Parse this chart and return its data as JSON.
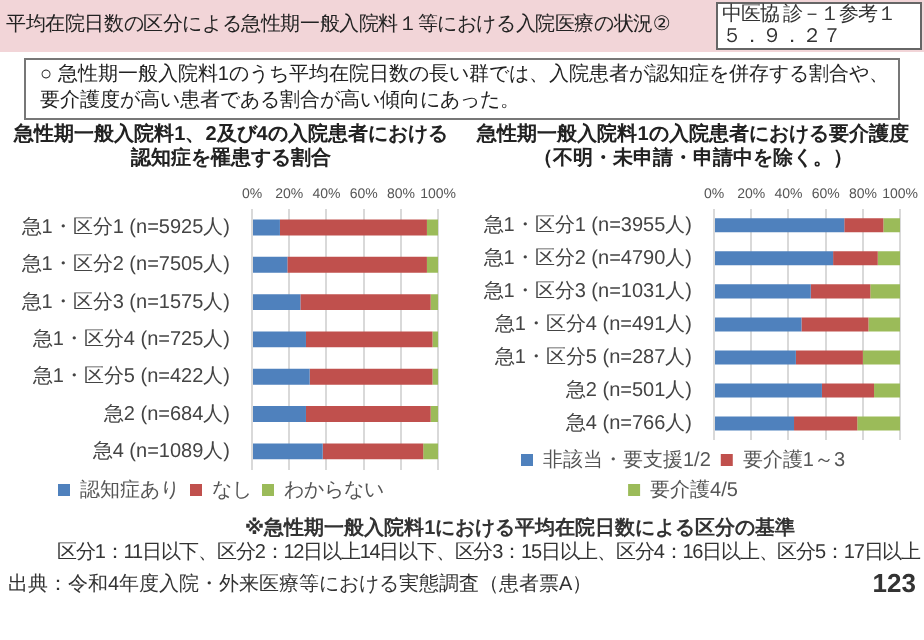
{
  "chart_data": [
    {
      "type": "other",
      "title": "平均在院日数の区分による急性期一般入院料１等における入院医療の状況②",
      "annotations": [
        "中医協 診－１参考１",
        "５．９．２７",
        "○ 急性期一般入院料1のうち平均在院日数の長い群では、入院患者が認知症を併存する割合や、要介護度が高い患者である割合が高い傾向にあった。",
        "※急性期一般入院料1における平均在院日数による区分の基準",
        "区分1：11日以下、区分2：12日以上14日以下、区分3：15日以上、区分4：16日以上、区分5：17日以上",
        "出典：令和4年度入院・外来医療等における実態調査（患者票A）",
        "123"
      ]
    },
    {
      "type": "bar",
      "title": "急性期一般入院料1、2及び4の入院患者における認知症を罹患する割合",
      "orientation": "horizontal",
      "stacked": true,
      "categories": [
        "急1・区分1 (n=5925人)",
        "急1・区分2 (n=7505人)",
        "急1・区分3 (n=1575人)",
        "急1・区分4 (n=725人)",
        "急1・区分5 (n=422人)",
        "急2 (n=684人)",
        "急4 (n=1089人)"
      ],
      "series": [
        {
          "name": "認知症あり",
          "color": "#4f81bd",
          "values": [
            15,
            19,
            26,
            29,
            31,
            29,
            38
          ]
        },
        {
          "name": "なし",
          "color": "#c0504d",
          "values": [
            79,
            75,
            70,
            68,
            66,
            67,
            54
          ]
        },
        {
          "name": "わからない",
          "color": "#9bbb59",
          "values": [
            6,
            6,
            4,
            3,
            3,
            4,
            8
          ]
        }
      ],
      "xlim": [
        0,
        100
      ],
      "xticks": [
        {
          "value": 0,
          "label": "0%"
        },
        {
          "value": 20,
          "label": "20%"
        },
        {
          "value": 40,
          "label": "40%"
        },
        {
          "value": 60,
          "label": "60%"
        },
        {
          "value": 80,
          "label": "80%"
        },
        {
          "value": 100,
          "label": "100%"
        }
      ],
      "grid": "x",
      "legend": "bottom"
    },
    {
      "type": "bar",
      "title": "急性期一般入院料1の入院患者における要介護度（不明・未申請・申請中を除く。）",
      "orientation": "horizontal",
      "stacked": true,
      "categories": [
        "急1・区分1 (n=3955人)",
        "急1・区分2 (n=4790人)",
        "急1・区分3 (n=1031人)",
        "急1・区分4 (n=491人)",
        "急1・区分5 (n=287人)",
        "急2 (n=501人)",
        "急4 (n=766人)"
      ],
      "series": [
        {
          "name": "非該当・要支援1/2",
          "color": "#4f81bd",
          "values": [
            70,
            64,
            52,
            47,
            44,
            58,
            43
          ]
        },
        {
          "name": "要介護1～3",
          "color": "#c0504d",
          "values": [
            21,
            24,
            32,
            36,
            36,
            28,
            34
          ]
        },
        {
          "name": "要介護4/5",
          "color": "#9bbb59",
          "values": [
            9,
            12,
            16,
            17,
            20,
            14,
            23
          ]
        }
      ],
      "xlim": [
        0,
        100
      ],
      "xticks": [
        {
          "value": 0,
          "label": "0%"
        },
        {
          "value": 20,
          "label": "20%"
        },
        {
          "value": 40,
          "label": "40%"
        },
        {
          "value": 60,
          "label": "60%"
        },
        {
          "value": 80,
          "label": "80%"
        },
        {
          "value": 100,
          "label": "100%"
        }
      ],
      "grid": "x",
      "legend": "bottom"
    }
  ]
}
